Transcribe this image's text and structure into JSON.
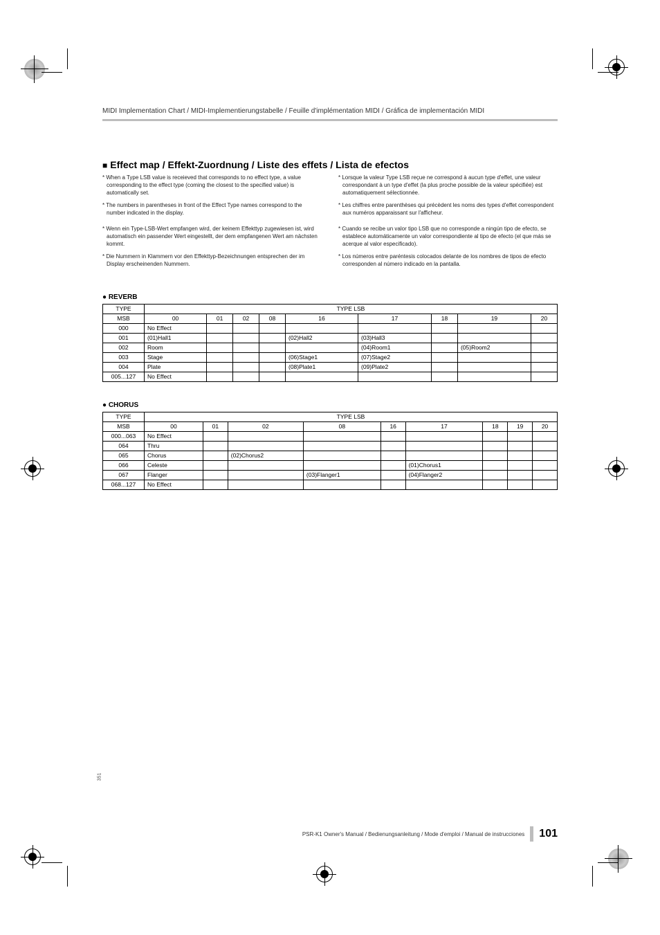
{
  "header": "MIDI Implementation Chart / MIDI-Implementierungstabelle / Feuille d'implémentation MIDI / Gráfica de implementación MIDI",
  "section_heading": "Effect map / Effekt-Zuordnung / Liste des effets / Lista de efectos",
  "notes_left": [
    "* When a Type LSB value is receieved that corresponds to no effect type, a value corresponding to the effect type (coming the closest to the specified value) is automatically set.",
    "* The numbers in parentheses in front of the Effect Type names correspond to the number indicated in the display.",
    "* Wenn ein Type-LSB-Wert empfangen wird, der keinem Effekttyp zugewiesen ist, wird automatisch ein passender Wert eingestellt, der dem empfangenen Wert am nächsten kommt.",
    "* Die Nummern in Klammern vor den Effekttyp-Bezeichnungen entsprechen der im Display erscheinenden Nummern."
  ],
  "notes_right": [
    "* Lorsque la valeur Type LSB reçue ne correspond à aucun type d'effet, une valeur correspondant à un type d'effet (la plus proche possible de la valeur spécifiée) est automatiquement sélectionnée.",
    "* Les chiffres entre parenthèses qui précèdent les noms des types d'effet correspondent aux numéros apparaissant sur l'afficheur.",
    "* Cuando se recibe un valor tipo LSB que no corresponde a ningún tipo de efecto, se establece automáticamente un valor correspondiente al tipo de efecto (el que más se acerque al valor especificado).",
    "* Los números entre paréntesis colocados delante de los nombres de tipos de efecto corresponden al número indicado en la pantalla."
  ],
  "reverb": {
    "title": "REVERB",
    "header_top_left": "TYPE",
    "header_top_right": "TYPE LSB",
    "header_msb": "MSB",
    "lsb_cols": [
      "00",
      "01",
      "02",
      "08",
      "16",
      "17",
      "18",
      "19",
      "20"
    ],
    "rows": [
      {
        "msb": "000",
        "cells": [
          "No Effect",
          "",
          "",
          "",
          "",
          "",
          "",
          "",
          ""
        ]
      },
      {
        "msb": "001",
        "cells": [
          "(01)Hall1",
          "",
          "",
          "",
          "(02)Hall2",
          "(03)Hall3",
          "",
          "",
          ""
        ]
      },
      {
        "msb": "002",
        "cells": [
          "Room",
          "",
          "",
          "",
          "",
          "(04)Room1",
          "",
          "(05)Room2",
          ""
        ]
      },
      {
        "msb": "003",
        "cells": [
          "Stage",
          "",
          "",
          "",
          "(06)Stage1",
          "(07)Stage2",
          "",
          "",
          ""
        ]
      },
      {
        "msb": "004",
        "cells": [
          "Plate",
          "",
          "",
          "",
          "(08)Plate1",
          "(09)Plate2",
          "",
          "",
          ""
        ]
      },
      {
        "msb": "005...127",
        "cells": [
          "No Effect",
          "",
          "",
          "",
          "",
          "",
          "",
          "",
          ""
        ]
      }
    ]
  },
  "chorus": {
    "title": "CHORUS",
    "header_top_left": "TYPE",
    "header_top_right": "TYPE LSB",
    "header_msb": "MSB",
    "lsb_cols": [
      "00",
      "01",
      "02",
      "08",
      "16",
      "17",
      "18",
      "19",
      "20"
    ],
    "rows": [
      {
        "msb": "000...063",
        "cells": [
          "No Effect",
          "",
          "",
          "",
          "",
          "",
          "",
          "",
          ""
        ]
      },
      {
        "msb": "064",
        "cells": [
          "Thru",
          "",
          "",
          "",
          "",
          "",
          "",
          "",
          ""
        ]
      },
      {
        "msb": "065",
        "cells": [
          "Chorus",
          "",
          "(02)Chorus2",
          "",
          "",
          "",
          "",
          "",
          ""
        ]
      },
      {
        "msb": "066",
        "cells": [
          "Celeste",
          "",
          "",
          "",
          "",
          "(01)Chorus1",
          "",
          "",
          ""
        ]
      },
      {
        "msb": "067",
        "cells": [
          "Flanger",
          "",
          "",
          "(03)Flanger1",
          "",
          "(04)Flanger2",
          "",
          "",
          ""
        ]
      },
      {
        "msb": "068...127",
        "cells": [
          "No Effect",
          "",
          "",
          "",
          "",
          "",
          "",
          "",
          ""
        ]
      }
    ]
  },
  "footer_text": "PSR-K1 Owner's Manual / Bedienungsanleitung / Mode d'emploi / Manual de instrucciones",
  "page_number": "101",
  "side_number": "351",
  "colors": {
    "rule": "#bdbdbd",
    "text": "#000000",
    "bg": "#ffffff"
  }
}
